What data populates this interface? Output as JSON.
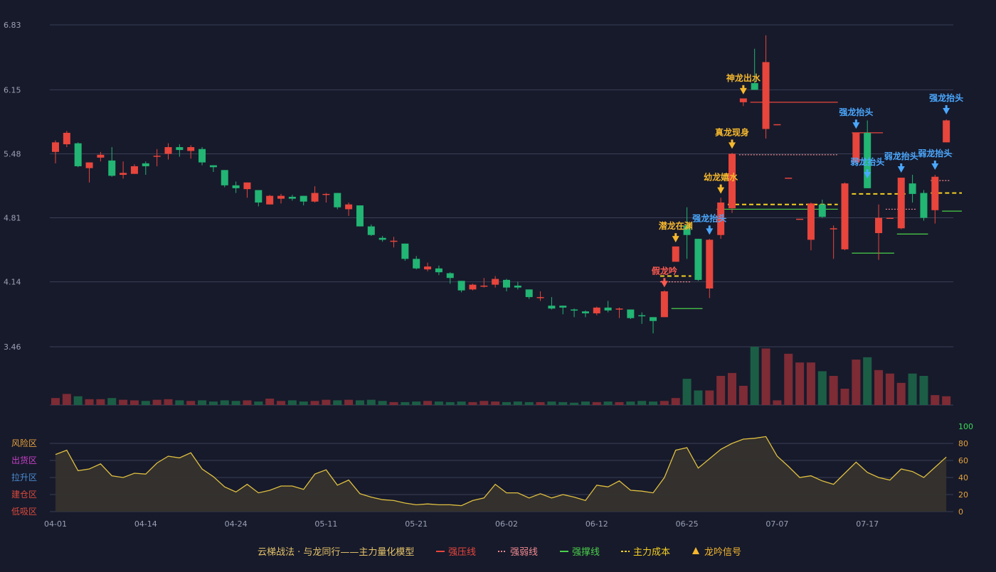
{
  "chart_data": {
    "type": "candlestick",
    "colors": {
      "background": "#171a2b",
      "grid": "#3a3f55",
      "up": "#e8453c",
      "down": "#22b573",
      "vol_up": "#7d2b35",
      "vol_down": "#1b5e45",
      "osc_line": "#e0c040",
      "osc_fill": "#36332e",
      "signal_yellow": "#f5b82e",
      "signal_blue": "#4aa8ff",
      "signal_red": "#ff5a50",
      "osc_axis": "#e6a23c",
      "osc_axis_top": "#3adb5a"
    },
    "price_axis": {
      "ticks": [
        "6.83",
        "6.15",
        "5.48",
        "4.81",
        "4.14",
        "3.46"
      ],
      "min": 3.46,
      "max": 6.83
    },
    "x_tick_labels": [
      {
        "index": 0,
        "label": "04-01"
      },
      {
        "index": 8,
        "label": "04-14"
      },
      {
        "index": 16,
        "label": "04-24"
      },
      {
        "index": 24,
        "label": "05-11"
      },
      {
        "index": 32,
        "label": "05-21"
      },
      {
        "index": 40,
        "label": "06-02"
      },
      {
        "index": 48,
        "label": "06-12"
      },
      {
        "index": 56,
        "label": "06-25"
      },
      {
        "index": 64,
        "label": "07-07"
      },
      {
        "index": 72,
        "label": "07-17"
      }
    ],
    "candles": [
      [
        5.5,
        5.6,
        5.62,
        5.38
      ],
      [
        5.58,
        5.7,
        5.72,
        5.55
      ],
      [
        5.59,
        5.35,
        5.6,
        5.34
      ],
      [
        5.33,
        5.39,
        5.39,
        5.18
      ],
      [
        5.44,
        5.47,
        5.5,
        5.4
      ],
      [
        5.41,
        5.25,
        5.55,
        5.24
      ],
      [
        5.26,
        5.28,
        5.4,
        5.22
      ],
      [
        5.27,
        5.35,
        5.37,
        5.27
      ],
      [
        5.38,
        5.35,
        5.4,
        5.26
      ],
      [
        5.45,
        5.46,
        5.53,
        5.35
      ],
      [
        5.48,
        5.55,
        5.59,
        5.42
      ],
      [
        5.55,
        5.52,
        5.58,
        5.45
      ],
      [
        5.51,
        5.55,
        5.57,
        5.43
      ],
      [
        5.53,
        5.39,
        5.55,
        5.36
      ],
      [
        5.36,
        5.34,
        5.36,
        5.29
      ],
      [
        5.31,
        5.15,
        5.31,
        5.13
      ],
      [
        5.15,
        5.12,
        5.19,
        5.07
      ],
      [
        5.11,
        5.18,
        5.18,
        5.02
      ],
      [
        5.1,
        4.97,
        5.1,
        4.93
      ],
      [
        4.95,
        5.04,
        5.05,
        4.95
      ],
      [
        5.01,
        5.04,
        5.06,
        4.96
      ],
      [
        5.03,
        5.01,
        5.05,
        4.99
      ],
      [
        5.04,
        4.98,
        5.04,
        4.94
      ],
      [
        4.98,
        5.07,
        5.14,
        4.97
      ],
      [
        5.06,
        5.06,
        5.07,
        4.97
      ],
      [
        5.07,
        4.92,
        5.07,
        4.9
      ],
      [
        4.9,
        4.95,
        4.97,
        4.83
      ],
      [
        4.94,
        4.72,
        4.94,
        4.72
      ],
      [
        4.72,
        4.63,
        4.74,
        4.62
      ],
      [
        4.6,
        4.58,
        4.62,
        4.56
      ],
      [
        4.57,
        4.57,
        4.61,
        4.5
      ],
      [
        4.54,
        4.38,
        4.54,
        4.36
      ],
      [
        4.38,
        4.28,
        4.41,
        4.27
      ],
      [
        4.27,
        4.3,
        4.34,
        4.25
      ],
      [
        4.28,
        4.24,
        4.31,
        4.21
      ],
      [
        4.23,
        4.18,
        4.24,
        4.12
      ],
      [
        4.15,
        4.05,
        4.15,
        4.03
      ],
      [
        4.06,
        4.11,
        4.12,
        4.05
      ],
      [
        4.1,
        4.1,
        4.18,
        4.08
      ],
      [
        4.11,
        4.17,
        4.2,
        4.08
      ],
      [
        4.16,
        4.08,
        4.17,
        4.04
      ],
      [
        4.1,
        4.08,
        4.14,
        4.06
      ],
      [
        4.06,
        3.98,
        4.06,
        3.96
      ],
      [
        3.98,
        3.98,
        4.04,
        3.94
      ],
      [
        3.89,
        3.86,
        3.98,
        3.85
      ],
      [
        3.89,
        3.87,
        3.89,
        3.8
      ],
      [
        3.85,
        3.84,
        3.86,
        3.77
      ],
      [
        3.83,
        3.81,
        3.84,
        3.77
      ],
      [
        3.81,
        3.87,
        3.88,
        3.79
      ],
      [
        3.87,
        3.84,
        3.94,
        3.82
      ],
      [
        3.85,
        3.86,
        3.87,
        3.76
      ],
      [
        3.85,
        3.76,
        3.85,
        3.75
      ],
      [
        3.79,
        3.78,
        3.82,
        3.7
      ],
      [
        3.77,
        3.73,
        3.77,
        3.6
      ],
      [
        3.77,
        4.04,
        4.05,
        3.77
      ],
      [
        4.35,
        4.51,
        4.51,
        4.36
      ],
      [
        4.73,
        4.63,
        4.92,
        4.38
      ],
      [
        4.59,
        4.16,
        4.59,
        4.15
      ],
      [
        4.07,
        4.58,
        4.59,
        3.97
      ],
      [
        4.63,
        4.97,
        5.02,
        4.59
      ],
      [
        4.91,
        5.48,
        5.49,
        4.86
      ],
      [
        6.02,
        6.06,
        6.06,
        5.98
      ],
      [
        6.22,
        6.15,
        6.58,
        6.15
      ],
      [
        5.74,
        6.44,
        6.72,
        5.64
      ],
      [
        5.79,
        5.79,
        5.79,
        5.79
      ],
      [
        5.23,
        5.23,
        5.23,
        5.23
      ],
      [
        4.8,
        4.8,
        4.8,
        4.8
      ],
      [
        4.58,
        4.96,
        4.97,
        4.47
      ],
      [
        4.95,
        4.82,
        5.0,
        4.81
      ],
      [
        4.7,
        4.7,
        4.73,
        4.38
      ],
      [
        4.48,
        5.17,
        5.18,
        4.47
      ],
      [
        5.39,
        5.7,
        5.7,
        5.38
      ],
      [
        5.7,
        5.12,
        5.83,
        5.12
      ],
      [
        4.65,
        4.81,
        4.95,
        4.37
      ],
      [
        4.81,
        4.81,
        4.81,
        4.81
      ],
      [
        4.7,
        5.23,
        5.23,
        4.69
      ],
      [
        5.17,
        5.06,
        5.26,
        4.97
      ],
      [
        5.07,
        4.81,
        5.1,
        4.78
      ],
      [
        4.89,
        5.24,
        5.26,
        4.75
      ],
      [
        5.6,
        5.83,
        5.84,
        5.6
      ]
    ],
    "volume": [
      0.12,
      0.19,
      0.15,
      0.1,
      0.1,
      0.12,
      0.09,
      0.08,
      0.07,
      0.09,
      0.1,
      0.08,
      0.07,
      0.08,
      0.06,
      0.08,
      0.07,
      0.08,
      0.06,
      0.11,
      0.07,
      0.08,
      0.06,
      0.07,
      0.09,
      0.08,
      0.09,
      0.08,
      0.09,
      0.07,
      0.05,
      0.05,
      0.06,
      0.07,
      0.06,
      0.05,
      0.06,
      0.05,
      0.07,
      0.06,
      0.05,
      0.06,
      0.05,
      0.05,
      0.06,
      0.05,
      0.04,
      0.06,
      0.05,
      0.06,
      0.05,
      0.06,
      0.07,
      0.06,
      0.07,
      0.12,
      0.45,
      0.25,
      0.25,
      0.5,
      0.55,
      0.33,
      1.0,
      0.97,
      0.08,
      0.88,
      0.73,
      0.73,
      0.58,
      0.5,
      0.28,
      0.78,
      0.82,
      0.6,
      0.54,
      0.38,
      0.54,
      0.5,
      0.17,
      0.15
    ],
    "oscillator": {
      "values": [
        67,
        72,
        48,
        50,
        56,
        42,
        40,
        45,
        44,
        57,
        65,
        63,
        69,
        50,
        41,
        29,
        23,
        32,
        22,
        25,
        30,
        30,
        26,
        44,
        49,
        31,
        37,
        21,
        17,
        14,
        13,
        10,
        8,
        9,
        8,
        8,
        7,
        13,
        16,
        32,
        22,
        22,
        16,
        21,
        16,
        20,
        17,
        13,
        31,
        29,
        36,
        25,
        24,
        22,
        40,
        72,
        75,
        51,
        62,
        73,
        80,
        85,
        86,
        88,
        65,
        53,
        40,
        42,
        36,
        32,
        45,
        58,
        46,
        40,
        37,
        50,
        47,
        40,
        52,
        64
      ],
      "axis_ticks": [
        "100",
        "80",
        "60",
        "40",
        "20",
        "0"
      ],
      "zones": [
        "风险区",
        "出货区",
        "拉升区",
        "建仓区",
        "低吸区"
      ],
      "zone_colors": [
        "#e6a23c",
        "#c640c6",
        "#4a8cd0",
        "#d9493c",
        "#d9493c"
      ]
    },
    "annotations": [
      {
        "index": 54,
        "label": "假龙吟",
        "color": "#ff5a50",
        "price": 4.06
      },
      {
        "index": 55,
        "label": "潜龙在渊",
        "color": "#f5b82e",
        "price": 4.53
      },
      {
        "index": 58,
        "label": "强龙抬头",
        "color": "#4aa8ff",
        "price": 4.61
      },
      {
        "index": 59,
        "label": "幼龙嬉水",
        "color": "#f5b82e",
        "price": 5.04
      },
      {
        "index": 60,
        "label": "真龙现身",
        "color": "#f5b82e",
        "price": 5.51
      },
      {
        "index": 61,
        "label": "神龙出水",
        "color": "#f5b82e",
        "price": 6.08
      },
      {
        "index": 72,
        "label": "弱龙抬头",
        "color": "#4aa8ff",
        "price": 5.2
      },
      {
        "index": 71,
        "label": "强龙抬头",
        "color": "#4aa8ff",
        "price": 5.72
      },
      {
        "index": 75,
        "label": "弱龙抬头",
        "color": "#4aa8ff",
        "price": 5.26
      },
      {
        "index": 78,
        "label": "弱龙抬头",
        "color": "#4aa8ff",
        "price": 5.29
      },
      {
        "index": 79,
        "label": "强龙抬头",
        "color": "#4aa8ff",
        "price": 5.87
      }
    ],
    "level_lines": [
      {
        "type": "pressure",
        "from": 62,
        "to": 69,
        "price": 6.02,
        "color": "#e8453c",
        "dash": ""
      },
      {
        "type": "pressure",
        "from": 71,
        "to": 73,
        "price": 5.7,
        "color": "#e8453c",
        "dash": ""
      },
      {
        "type": "weak",
        "from": 61,
        "to": 69,
        "price": 5.47,
        "color": "#f08a90",
        "dash": "2,2"
      },
      {
        "type": "weak",
        "from": 74,
        "to": 76,
        "price": 4.9,
        "color": "#f08a90",
        "dash": "2,2"
      },
      {
        "type": "weak",
        "from": 78,
        "to": 79,
        "price": 5.2,
        "color": "#f08a90",
        "dash": "2,2"
      },
      {
        "type": "weak",
        "from": 54,
        "to": 56,
        "price": 4.14,
        "color": "#f08a90",
        "dash": "2,2"
      },
      {
        "type": "support",
        "from": 55,
        "to": 57,
        "price": 3.86,
        "color": "#4ad04a",
        "dash": ""
      },
      {
        "type": "support",
        "from": 59,
        "to": 69,
        "price": 4.9,
        "color": "#4ad04a",
        "dash": ""
      },
      {
        "type": "support",
        "from": 71,
        "to": 74,
        "price": 4.44,
        "color": "#4ad04a",
        "dash": ""
      },
      {
        "type": "support",
        "from": 75,
        "to": 77,
        "price": 4.64,
        "color": "#4ad04a",
        "dash": ""
      },
      {
        "type": "support",
        "from": 79,
        "to": 80,
        "price": 4.88,
        "color": "#4ad04a",
        "dash": ""
      },
      {
        "type": "cost",
        "from": 54,
        "to": 56,
        "price": 4.2,
        "color": "#f5d020",
        "dash": "6,4"
      },
      {
        "type": "cost",
        "from": 60,
        "to": 69,
        "price": 4.95,
        "color": "#f5d020",
        "dash": "6,4"
      },
      {
        "type": "cost",
        "from": 71,
        "to": 75,
        "price": 5.06,
        "color": "#f5d020",
        "dash": "6,4"
      },
      {
        "type": "cost",
        "from": 78,
        "to": 80,
        "price": 5.07,
        "color": "#f5d020",
        "dash": "6,4"
      }
    ],
    "legend": {
      "title": "云梯战法 · 与龙同行——主力量化模型",
      "items": [
        {
          "label": "强压线",
          "color": "#e8453c",
          "style": "solid"
        },
        {
          "label": "强弱线",
          "color": "#f08a90",
          "style": "dotted"
        },
        {
          "label": "强撑线",
          "color": "#4ad04a",
          "style": "solid"
        },
        {
          "label": "主力成本",
          "color": "#f5d020",
          "style": "dashed"
        },
        {
          "label": "龙吟信号",
          "color": "#f5b82e",
          "style": "triangle"
        }
      ]
    }
  }
}
